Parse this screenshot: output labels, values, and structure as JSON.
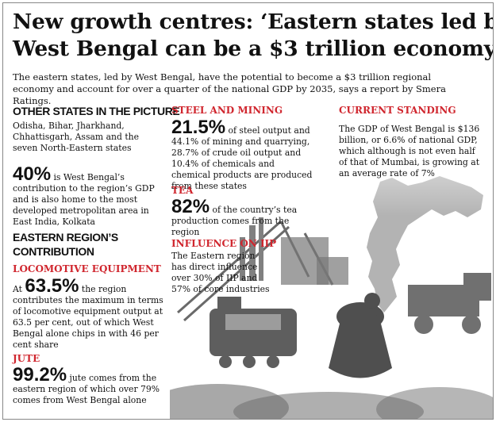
{
  "headline": {
    "line1": "New growth centres: ‘Eastern states led by",
    "line2": "West Bengal can be a $3 trillion economy by 2035’"
  },
  "deck": "The eastern states, led by West Bengal, have the potential to become a $3 trillion regional economy and account for over a quarter of the national GDP by 2035, says a report by Smera Ratings.",
  "other_states": {
    "heading": "OTHER STATES IN THE PICTURE",
    "text": "Odisha, Bihar, Jharkhand, Chhattisgarh, Assam and the seven North-Eastern states",
    "stat": "40%",
    "stat_text": " is West Bengal’s contribution to the region’s GDP and is also home to the most developed metropolitan area in East India, Kolkata"
  },
  "eastern_region": {
    "heading_line1": "EASTERN REGION’S",
    "heading_line2": "CONTRIBUTION"
  },
  "locomotive": {
    "heading": "LOCOMOTIVE EQUIPMENT",
    "prefix": "At ",
    "stat": "63.5%",
    "text": " the region contributes the maximum in terms of locomotive equipment output at 63.5 per cent, out of which West Bengal alone chips in with 46 per cent share"
  },
  "jute": {
    "heading": "JUTE",
    "stat": "99.2%",
    "text": " jute comes from the eastern region of which over 79% comes from West Bengal alone"
  },
  "steel": {
    "heading": "STEEL AND MINING",
    "stat": "21.5%",
    "text": " of steel output and 44.1% of mining and quarrying, 28.7% of crude oil output and 10.4% of chemicals and chemical products are produced from these states"
  },
  "tea": {
    "heading": "TEA",
    "stat": "82%",
    "text": " of the country’s tea production comes from the region"
  },
  "iip": {
    "heading": "INFLUENCE ON IIP",
    "text": "The Eastern region has direct influence over 30% of IIP and 57% of core industries"
  },
  "current": {
    "heading": "CURRENT STANDING",
    "text": "The GDP of West Bengal is $136 billion, or 6.6% of national GDP, which although is not even half of that of Mumbai, is growing at an average rate of 7%"
  },
  "colors": {
    "accent_red": "#d0262e",
    "text": "#111111",
    "artwork_gray": "#8a8a8a"
  }
}
